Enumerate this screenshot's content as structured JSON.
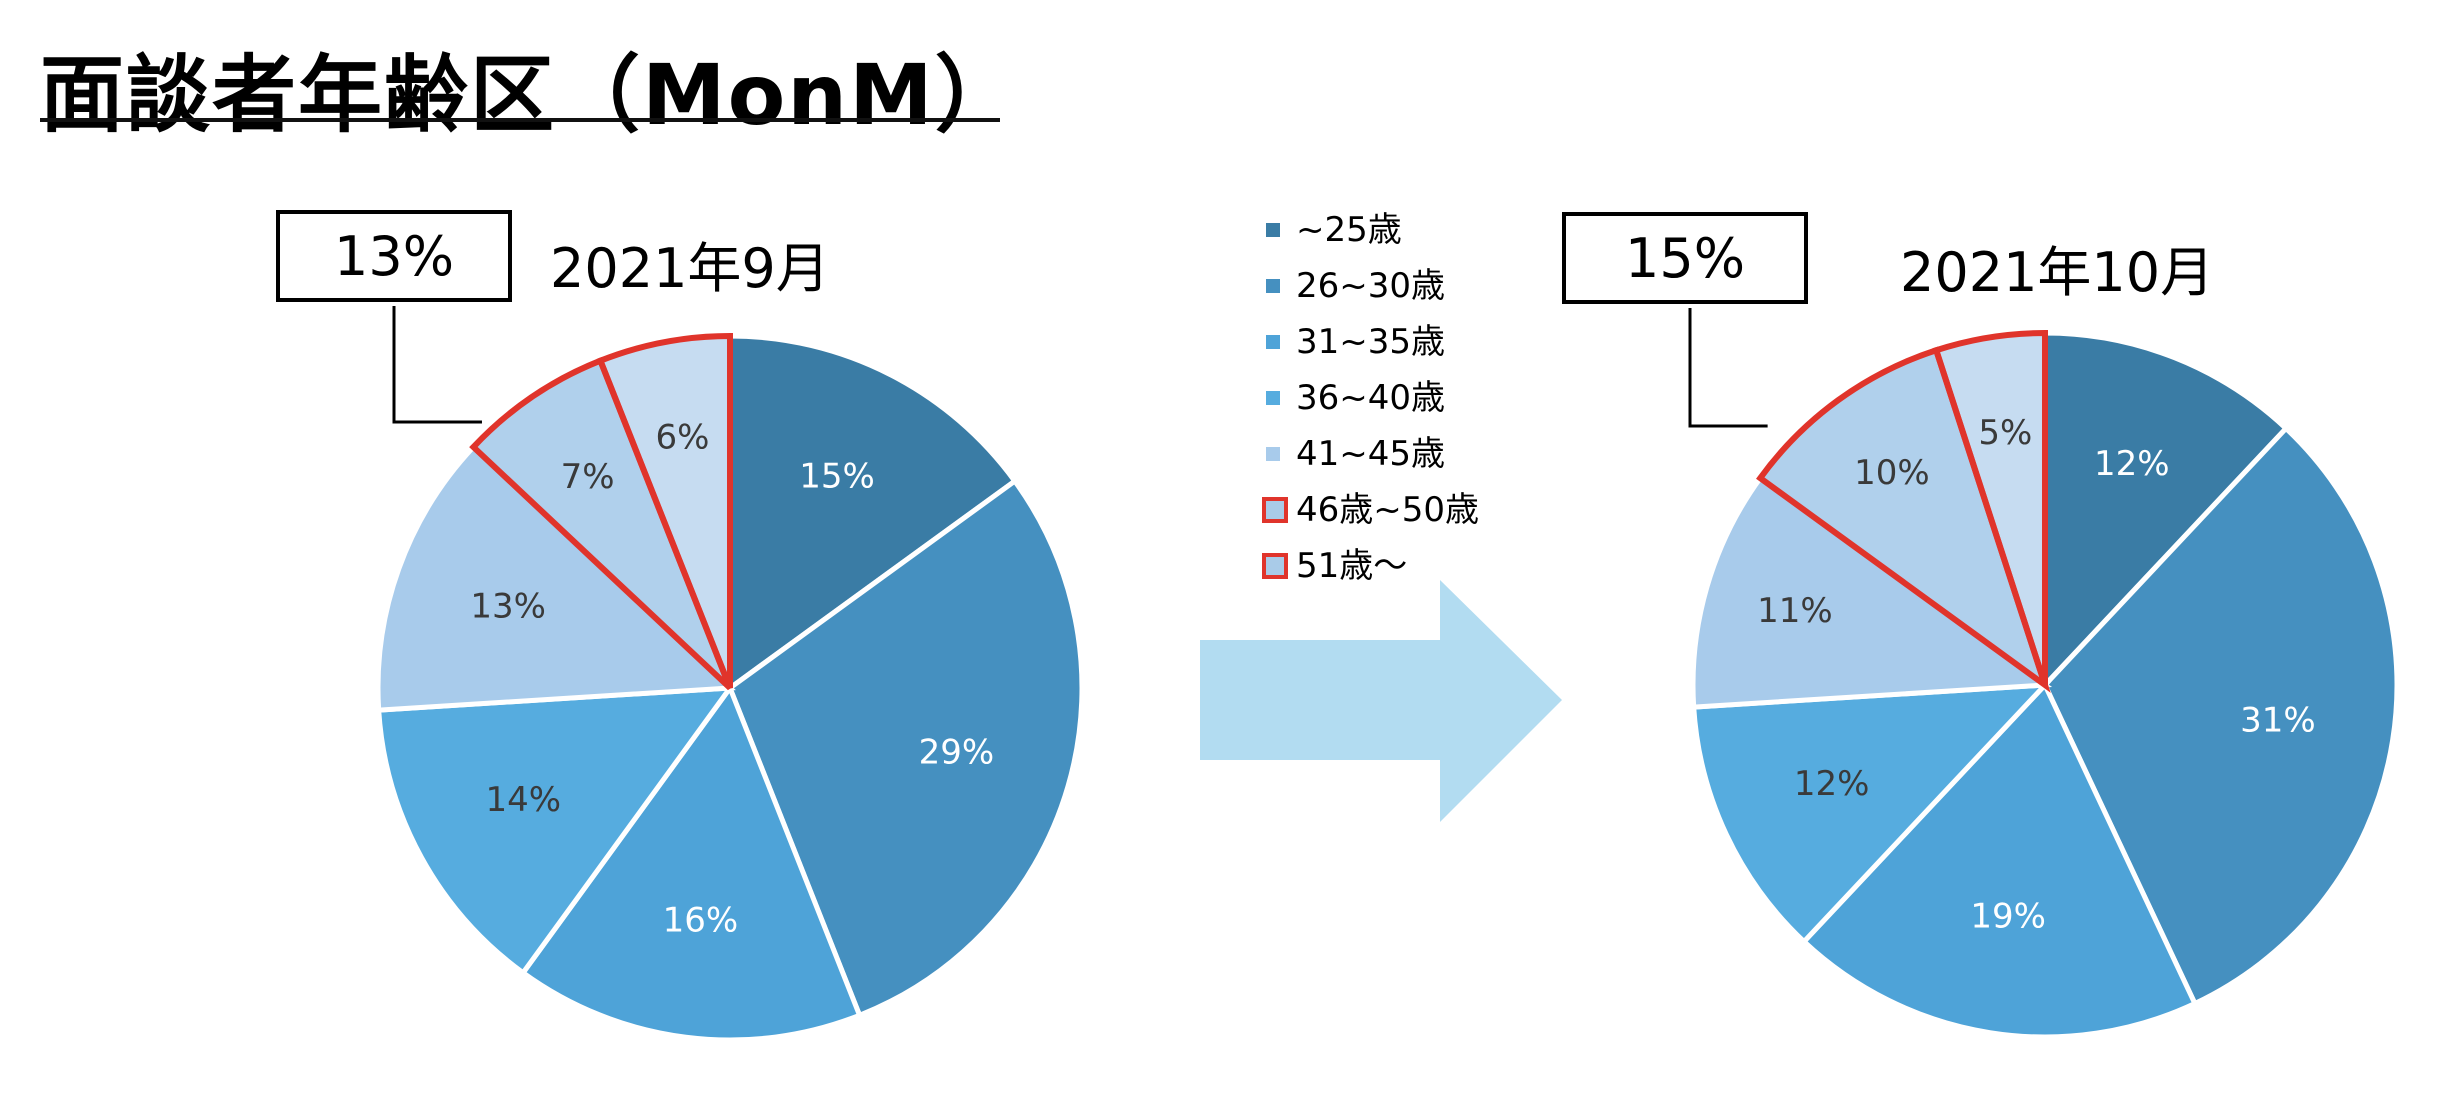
{
  "page": {
    "title": "面談者年齢区（MonM）"
  },
  "legend": [
    {
      "label": "~25歳",
      "color": "#3a7ca5",
      "highlight": false
    },
    {
      "label": "26~30歳",
      "color": "#4590c0",
      "highlight": false
    },
    {
      "label": "31~35歳",
      "color": "#4ea3d8",
      "highlight": false
    },
    {
      "label": "36~40歳",
      "color": "#56acdf",
      "highlight": false
    },
    {
      "label": "41~45歳",
      "color": "#a8cbeb",
      "highlight": false
    },
    {
      "label": "46歳~50歳",
      "color": "#b0d0ec",
      "highlight": true
    },
    {
      "label": "51歳～",
      "color": "#c6dcf1",
      "highlight": true
    }
  ],
  "highlight_color": "#e0342b",
  "arrow_color": "#b2dcf1",
  "chart_data": [
    {
      "type": "pie",
      "title": "2021年9月",
      "callout": "13%",
      "categories": [
        "~25歳",
        "26~30歳",
        "31~35歳",
        "36~40歳",
        "41~45歳",
        "46歳~50歳",
        "51歳～"
      ],
      "values": [
        15,
        29,
        16,
        14,
        13,
        7,
        6
      ],
      "labels": [
        "15%",
        "29%",
        "16%",
        "14%",
        "13%",
        "7%",
        "6%"
      ],
      "colors": [
        "#3a7ca5",
        "#4590c0",
        "#4ea3d8",
        "#56acdf",
        "#a8cbeb",
        "#b0d0ec",
        "#c6dcf1"
      ],
      "highlighted_categories": [
        "46歳~50歳",
        "51歳～"
      ]
    },
    {
      "type": "pie",
      "title": "2021年10月",
      "callout": "15%",
      "categories": [
        "~25歳",
        "26~30歳",
        "31~35歳",
        "36~40歳",
        "41~45歳",
        "46歳~50歳",
        "51歳～"
      ],
      "values": [
        12,
        31,
        19,
        12,
        11,
        10,
        5
      ],
      "labels": [
        "12%",
        "31%",
        "19%",
        "12%",
        "11%",
        "10%",
        "5%"
      ],
      "colors": [
        "#3a7ca5",
        "#4590c0",
        "#4ea3d8",
        "#56acdf",
        "#a8cbeb",
        "#b0d0ec",
        "#c6dcf1"
      ],
      "highlighted_categories": [
        "46歳~50歳",
        "51歳～"
      ]
    }
  ]
}
